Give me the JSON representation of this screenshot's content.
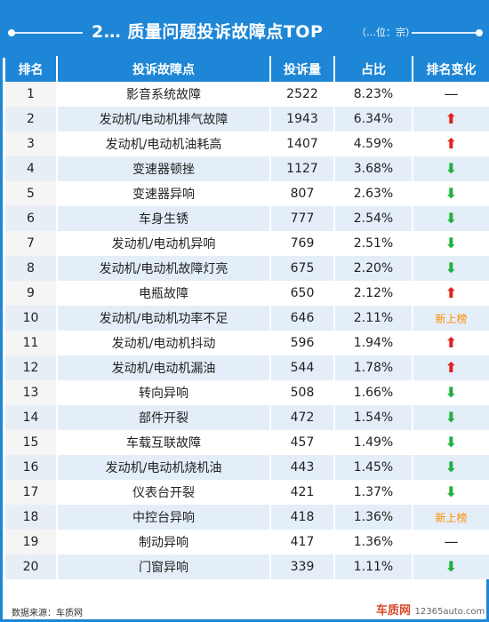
{
  "header": {
    "title": "2… 质量问题投诉故障点TOP",
    "unit": "（…位：宗）",
    "title_color": "#1d86d6"
  },
  "chart_data": {
    "type": "table",
    "columns": [
      "排名",
      "投诉故障点",
      "投诉量",
      "占比",
      "排名变化"
    ],
    "rows": [
      {
        "rank": "1",
        "fault": "影音系统故障",
        "count": "2522",
        "share": "8.23%",
        "change": "same"
      },
      {
        "rank": "2",
        "fault": "发动机/电动机排气故障",
        "count": "1943",
        "share": "6.34%",
        "change": "up"
      },
      {
        "rank": "3",
        "fault": "发动机/电动机油耗高",
        "count": "1407",
        "share": "4.59%",
        "change": "up"
      },
      {
        "rank": "4",
        "fault": "变速器顿挫",
        "count": "1127",
        "share": "3.68%",
        "change": "down"
      },
      {
        "rank": "5",
        "fault": "变速器异响",
        "count": "807",
        "share": "2.63%",
        "change": "down"
      },
      {
        "rank": "6",
        "fault": "车身生锈",
        "count": "777",
        "share": "2.54%",
        "change": "down"
      },
      {
        "rank": "7",
        "fault": "发动机/电动机异响",
        "count": "769",
        "share": "2.51%",
        "change": "down"
      },
      {
        "rank": "8",
        "fault": "发动机/电动机故障灯亮",
        "count": "675",
        "share": "2.20%",
        "change": "down"
      },
      {
        "rank": "9",
        "fault": "电瓶故障",
        "count": "650",
        "share": "2.12%",
        "change": "up"
      },
      {
        "rank": "10",
        "fault": "发动机/电动机功率不足",
        "count": "646",
        "share": "2.11%",
        "change": "new"
      },
      {
        "rank": "11",
        "fault": "发动机/电动机抖动",
        "count": "596",
        "share": "1.94%",
        "change": "up"
      },
      {
        "rank": "12",
        "fault": "发动机/电动机漏油",
        "count": "544",
        "share": "1.78%",
        "change": "up"
      },
      {
        "rank": "13",
        "fault": "转向异响",
        "count": "508",
        "share": "1.66%",
        "change": "down"
      },
      {
        "rank": "14",
        "fault": "部件开裂",
        "count": "472",
        "share": "1.54%",
        "change": "down"
      },
      {
        "rank": "15",
        "fault": "车载互联故障",
        "count": "457",
        "share": "1.49%",
        "change": "down"
      },
      {
        "rank": "16",
        "fault": "发动机/电动机烧机油",
        "count": "443",
        "share": "1.45%",
        "change": "down"
      },
      {
        "rank": "17",
        "fault": "仪表台开裂",
        "count": "421",
        "share": "1.37%",
        "change": "down"
      },
      {
        "rank": "18",
        "fault": "中控台异响",
        "count": "418",
        "share": "1.36%",
        "change": "new"
      },
      {
        "rank": "19",
        "fault": "制动异响",
        "count": "417",
        "share": "1.36%",
        "change": "same"
      },
      {
        "rank": "20",
        "fault": "门窗异响",
        "count": "339",
        "share": "1.11%",
        "change": "down"
      }
    ],
    "change_symbols": {
      "up": "⬆",
      "down": "⬇",
      "same": "—",
      "new": "新上榜"
    },
    "change_colors": {
      "up": "#e02020",
      "down": "#20b040",
      "same": "#222222",
      "new": "#ff8c00"
    }
  },
  "footer": {
    "source": "数据来源：车质网",
    "brand": "车质网",
    "url": "12365auto.com"
  }
}
